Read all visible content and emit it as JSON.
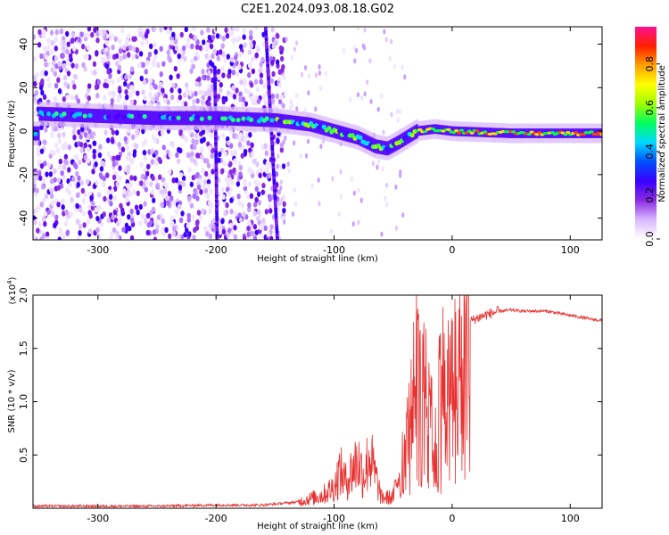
{
  "title": "C2E1.2024.093.08.18.G02",
  "chart_data": [
    {
      "type": "heatmap",
      "xlabel": "Height of straight line (km)",
      "ylabel": "Frequency (Hz)",
      "xlim": [
        -355,
        127
      ],
      "ylim": [
        -50,
        48
      ],
      "xticks": [
        -300,
        -200,
        -100,
        0,
        100
      ],
      "yticks": [
        -40,
        -20,
        0,
        20,
        40
      ],
      "colorbar": {
        "label": "Normalized spectral amplitude",
        "range": [
          0,
          0.97
        ],
        "ticks": [
          0.0,
          0.2,
          0.4,
          0.6,
          0.8
        ],
        "tick_labels": [
          "0.0",
          "0.2",
          "0.4",
          "0.6",
          "0.8"
        ],
        "colormap": [
          "#ffffff",
          "#d8b8ff",
          "#8a2be2",
          "#3a00ff",
          "#0050ff",
          "#00d8ff",
          "#00ff60",
          "#a0ff00",
          "#ffff00",
          "#ffa000",
          "#ff2000",
          "#ff1090"
        ]
      },
      "ridge": {
        "description_points": [
          {
            "x": -350,
            "y": 8
          },
          {
            "x": -300,
            "y": 7
          },
          {
            "x": -250,
            "y": 6
          },
          {
            "x": -200,
            "y": 6
          },
          {
            "x": -150,
            "y": 5
          },
          {
            "x": -120,
            "y": 3
          },
          {
            "x": -100,
            "y": 0
          },
          {
            "x": -80,
            "y": -3
          },
          {
            "x": -65,
            "y": -7
          },
          {
            "x": -55,
            "y": -8
          },
          {
            "x": -45,
            "y": -5
          },
          {
            "x": -30,
            "y": 0
          },
          {
            "x": -15,
            "y": 1
          },
          {
            "x": 0,
            "y": 0
          },
          {
            "x": 50,
            "y": -1
          },
          {
            "x": 127,
            "y": -1
          }
        ],
        "strong_x_start": -30,
        "noise_end_x": -150
      },
      "vertical_streaks": [
        {
          "x_start": -158,
          "x_end": -148,
          "y_start": -50,
          "y_end": 48
        },
        {
          "x": -200,
          "y_start": -50,
          "y_end": 30
        }
      ]
    },
    {
      "type": "line",
      "xlabel": "Height of straight line (km)",
      "ylabel": "SNR (10 * v/v)",
      "y_multiplier": "(x10",
      "y_multiplier_exp": "4",
      "y_multiplier_close": ")",
      "xlim": [
        -355,
        127
      ],
      "ylim": [
        0,
        2.0
      ],
      "xticks": [
        -300,
        -200,
        -100,
        0,
        100
      ],
      "yticks": [
        0.5,
        1.0,
        1.5,
        2.0
      ],
      "ytick_labels": [
        "0.5",
        "1.0",
        "1.5",
        "2.0"
      ],
      "series": [
        {
          "color": "#e83030",
          "x": [
            -355,
            -300,
            -250,
            -200,
            -160,
            -130,
            -110,
            -100,
            -95,
            -90,
            -85,
            -80,
            -75,
            -70,
            -60,
            -50,
            -45,
            -40,
            -35,
            -30,
            -25,
            -20,
            -15,
            -10,
            -5,
            0,
            5,
            10,
            15,
            20,
            30,
            40,
            50,
            60,
            70,
            80,
            90,
            100,
            110,
            120,
            127
          ],
          "y": [
            0.02,
            0.02,
            0.02,
            0.03,
            0.03,
            0.06,
            0.12,
            0.2,
            0.35,
            0.25,
            0.35,
            0.45,
            0.3,
            0.5,
            0.1,
            0.1,
            0.35,
            0.6,
            0.9,
            1.4,
            1.1,
            1.45,
            0.6,
            1.35,
            1.2,
            1.3,
            1.4,
            1.55,
            1.75,
            1.78,
            1.82,
            1.85,
            1.86,
            1.85,
            1.85,
            1.85,
            1.83,
            1.81,
            1.79,
            1.77,
            1.76
          ]
        }
      ]
    }
  ]
}
